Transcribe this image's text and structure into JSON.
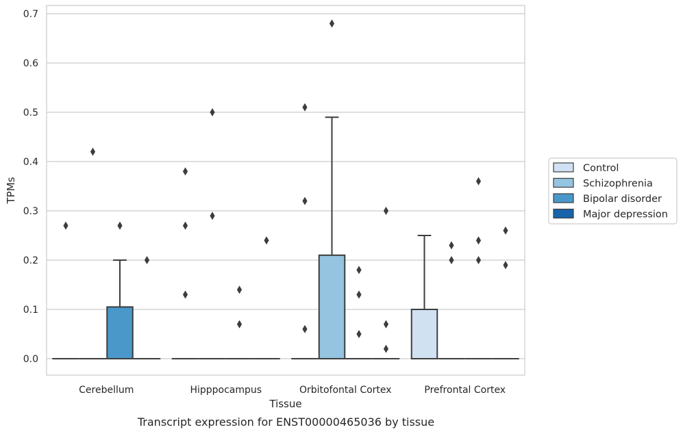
{
  "chart_data": {
    "type": "box",
    "caption": "Transcript expression for ENST00000465036 by tissue",
    "xlabel": "Tissue",
    "ylabel": "TPMs",
    "ylim": [
      -0.034,
      0.716
    ],
    "yticks": [
      0.0,
      0.1,
      0.2,
      0.3,
      0.4,
      0.5,
      0.6,
      0.7
    ],
    "ytick_labels": [
      "0.0",
      "0.1",
      "0.2",
      "0.3",
      "0.4",
      "0.5",
      "0.6",
      "0.7"
    ],
    "grid": true,
    "legend_position": "right",
    "categories": [
      "Cerebellum",
      "Hipppocampus",
      "Orbitofontal Cortex",
      "Prefrontal Cortex"
    ],
    "series": [
      {
        "name": "Control",
        "color": "#d0e1f2",
        "boxes": [
          {
            "q1": 0,
            "median": 0,
            "q3": 0,
            "whisker_low": 0,
            "whisker_high": 0,
            "outliers": [
              0.27
            ]
          },
          {
            "q1": 0,
            "median": 0,
            "q3": 0,
            "whisker_low": 0,
            "whisker_high": 0,
            "outliers": [
              0.13,
              0.27,
              0.38
            ]
          },
          {
            "q1": 0,
            "median": 0,
            "q3": 0,
            "whisker_low": 0,
            "whisker_high": 0,
            "outliers": [
              0.06,
              0.32,
              0.51
            ]
          },
          {
            "q1": 0,
            "median": 0,
            "q3": 0.1,
            "whisker_low": 0,
            "whisker_high": 0.25,
            "outliers": []
          }
        ]
      },
      {
        "name": "Schizophrenia",
        "color": "#94c4df",
        "boxes": [
          {
            "q1": 0,
            "median": 0,
            "q3": 0,
            "whisker_low": 0,
            "whisker_high": 0,
            "outliers": [
              0.42
            ]
          },
          {
            "q1": 0,
            "median": 0,
            "q3": 0,
            "whisker_low": 0,
            "whisker_high": 0,
            "outliers": [
              0.5,
              0.29
            ]
          },
          {
            "q1": 0,
            "median": 0,
            "q3": 0.21,
            "whisker_low": 0,
            "whisker_high": 0.49,
            "outliers": [
              0.68
            ]
          },
          {
            "q1": 0,
            "median": 0,
            "q3": 0,
            "whisker_low": 0,
            "whisker_high": 0,
            "outliers": [
              0.2,
              0.23
            ]
          }
        ]
      },
      {
        "name": "Bipolar disorder",
        "color": "#4a98c9",
        "boxes": [
          {
            "q1": 0,
            "median": 0,
            "q3": 0.105,
            "whisker_low": 0,
            "whisker_high": 0.2,
            "outliers": [
              0.27
            ]
          },
          {
            "q1": 0,
            "median": 0,
            "q3": 0,
            "whisker_low": 0,
            "whisker_high": 0,
            "outliers": [
              0.14,
              0.07
            ]
          },
          {
            "q1": 0,
            "median": 0,
            "q3": 0,
            "whisker_low": 0,
            "whisker_high": 0,
            "outliers": [
              0.18,
              0.13,
              0.05
            ]
          },
          {
            "q1": 0,
            "median": 0,
            "q3": 0,
            "whisker_low": 0,
            "whisker_high": 0,
            "outliers": [
              0.36,
              0.24,
              0.2
            ]
          }
        ]
      },
      {
        "name": "Major depression",
        "color": "#1764ab",
        "boxes": [
          {
            "q1": 0,
            "median": 0,
            "q3": 0,
            "whisker_low": 0,
            "whisker_high": 0,
            "outliers": [
              0.2
            ]
          },
          {
            "q1": 0,
            "median": 0,
            "q3": 0,
            "whisker_low": 0,
            "whisker_high": 0,
            "outliers": [
              0.24
            ]
          },
          {
            "q1": 0,
            "median": 0,
            "q3": 0,
            "whisker_low": 0,
            "whisker_high": 0,
            "outliers": [
              0.3,
              0.07,
              0.02
            ]
          },
          {
            "q1": 0,
            "median": 0,
            "q3": 0,
            "whisker_low": 0,
            "whisker_high": 0,
            "outliers": [
              0.26,
              0.19
            ]
          }
        ]
      }
    ]
  }
}
